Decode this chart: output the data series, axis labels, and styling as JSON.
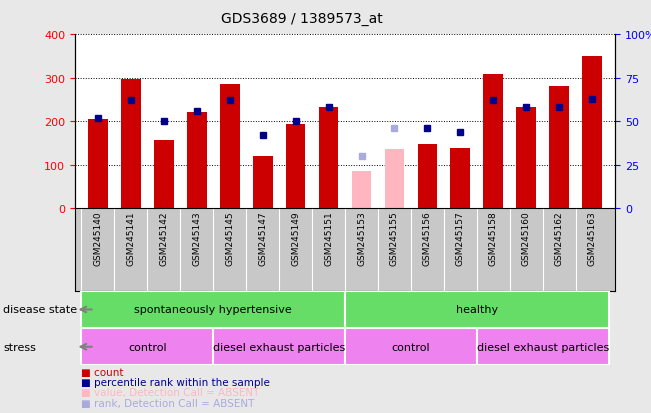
{
  "title": "GDS3689 / 1389573_at",
  "samples": [
    "GSM245140",
    "GSM245141",
    "GSM245142",
    "GSM245143",
    "GSM245145",
    "GSM245147",
    "GSM245149",
    "GSM245151",
    "GSM245153",
    "GSM245155",
    "GSM245156",
    "GSM245157",
    "GSM245158",
    "GSM245160",
    "GSM245162",
    "GSM245163"
  ],
  "counts": [
    205,
    298,
    157,
    220,
    286,
    120,
    193,
    233,
    null,
    null,
    147,
    138,
    308,
    232,
    281,
    349
  ],
  "counts_absent": [
    null,
    null,
    null,
    null,
    null,
    null,
    null,
    null,
    85,
    135,
    null,
    null,
    null,
    null,
    null,
    null
  ],
  "percentile_ranks": [
    52,
    62,
    50,
    56,
    62,
    42,
    50,
    58,
    null,
    null,
    46,
    44,
    62,
    58,
    58,
    63
  ],
  "percentile_ranks_absent": [
    null,
    null,
    null,
    null,
    null,
    null,
    null,
    null,
    30,
    46,
    null,
    null,
    null,
    null,
    null,
    null
  ],
  "disease_state_groups": [
    {
      "label": "spontaneously hypertensive",
      "start": 0,
      "end": 7,
      "color": "#66DD66"
    },
    {
      "label": "healthy",
      "start": 8,
      "end": 15,
      "color": "#66DD66"
    }
  ],
  "stress_groups": [
    {
      "label": "control",
      "start": 0,
      "end": 3,
      "color": "#EE82EE"
    },
    {
      "label": "diesel exhaust particles",
      "start": 4,
      "end": 7,
      "color": "#EE82EE"
    },
    {
      "label": "control",
      "start": 8,
      "end": 11,
      "color": "#EE82EE"
    },
    {
      "label": "diesel exhaust particles",
      "start": 12,
      "end": 15,
      "color": "#EE82EE"
    }
  ],
  "bar_color_present": "#CC0000",
  "bar_color_absent": "#FFB6C1",
  "dot_color_present": "#00008B",
  "dot_color_absent": "#AAAADD",
  "bar_width": 0.6,
  "ylim_left": [
    0,
    400
  ],
  "ylim_right": [
    0,
    100
  ],
  "yticks_left": [
    0,
    100,
    200,
    300,
    400
  ],
  "yticks_right": [
    0,
    25,
    50,
    75,
    100
  ],
  "background_color": "#E8E8E8",
  "plot_bg": "#FFFFFF",
  "xtick_bg": "#C8C8C8"
}
